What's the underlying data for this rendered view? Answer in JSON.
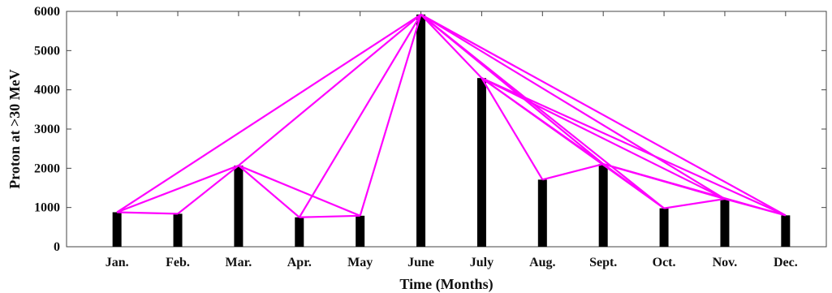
{
  "chart_data": {
    "type": "bar",
    "title": "",
    "xlabel": "Time (Months)",
    "ylabel": "Proton at >30 MeV",
    "categories": [
      "Jan.",
      "Feb.",
      "Mar.",
      "Apr.",
      "May",
      "June",
      "July",
      "Aug.",
      "Sept.",
      "Oct.",
      "Nov.",
      "Dec."
    ],
    "values": [
      880,
      840,
      2070,
      750,
      790,
      5920,
      4300,
      1710,
      2110,
      980,
      1220,
      800
    ],
    "ylim": [
      0,
      6000
    ],
    "yticks": [
      0,
      1000,
      2000,
      3000,
      4000,
      5000,
      6000
    ],
    "grid": false,
    "bar_color": "#000000",
    "link_color": "#ff00ff",
    "links": [
      [
        0,
        1
      ],
      [
        0,
        2
      ],
      [
        0,
        5
      ],
      [
        1,
        2
      ],
      [
        2,
        3
      ],
      [
        2,
        4
      ],
      [
        2,
        5
      ],
      [
        3,
        4
      ],
      [
        3,
        5
      ],
      [
        4,
        5
      ],
      [
        5,
        6
      ],
      [
        5,
        8
      ],
      [
        5,
        9
      ],
      [
        5,
        10
      ],
      [
        5,
        11
      ],
      [
        6,
        7
      ],
      [
        6,
        8
      ],
      [
        6,
        9
      ],
      [
        6,
        10
      ],
      [
        6,
        11
      ],
      [
        7,
        8
      ],
      [
        8,
        9
      ],
      [
        8,
        10
      ],
      [
        8,
        11
      ],
      [
        9,
        10
      ],
      [
        10,
        11
      ]
    ]
  }
}
